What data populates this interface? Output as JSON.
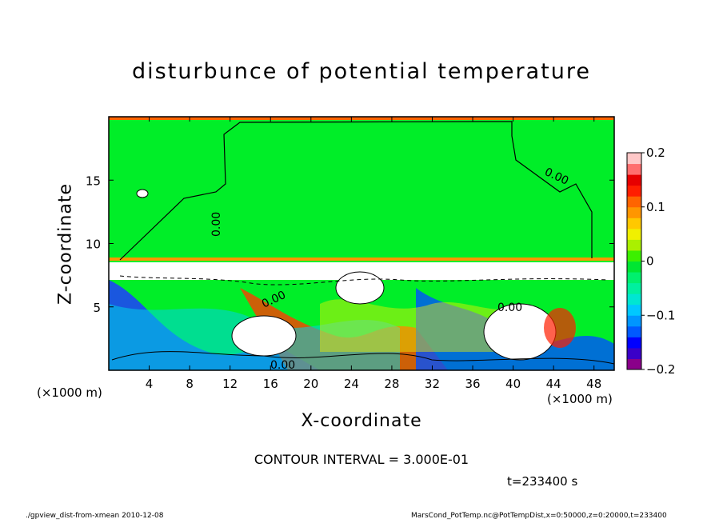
{
  "chart_data": {
    "type": "heatmap",
    "title": "disturbunce of potential temperature",
    "xlabel": "X-coordinate",
    "ylabel": "Z-coordinate",
    "x_unit_left": "(×1000 m)",
    "x_unit_right": "(×1000 m)",
    "xlim": [
      0,
      50
    ],
    "ylim": [
      0,
      20
    ],
    "xticks": [
      4,
      8,
      12,
      16,
      20,
      24,
      28,
      32,
      36,
      40,
      44,
      48
    ],
    "yticks": [
      5,
      10,
      15
    ],
    "colorbar": {
      "range": [
        -0.2,
        0.2
      ],
      "ticks": [
        0.2,
        0.1,
        0,
        -0.1,
        -0.2
      ],
      "tick_labels": [
        "0.2",
        "0.1",
        "0",
        "−0.1",
        "−0.2"
      ],
      "colors": [
        "#8a008a",
        "#3a00c8",
        "#0000ff",
        "#005aff",
        "#0096ff",
        "#00c8ff",
        "#00e6d2",
        "#00f0a0",
        "#00f06e",
        "#00e632",
        "#3cf000",
        "#aaf000",
        "#f0f000",
        "#ffc800",
        "#ff9600",
        "#ff6400",
        "#ff1e00",
        "#e60000",
        "#ff6e6e",
        "#ffc8c8"
      ]
    },
    "contour_labels": [
      "0.00",
      "0.00",
      "0.00",
      "0.00",
      "0.00"
    ],
    "contour_interval": "CONTOUR INTERVAL = 3.000E-01",
    "time": "t=233400 s",
    "background_color": "#00ee28"
  },
  "footer": {
    "left": "./gpview_dist-from-xmean  2010-12-08",
    "right": "MarsCond_PotTemp.nc@PotTempDist,x=0:50000,z=0:20000,t=233400"
  }
}
